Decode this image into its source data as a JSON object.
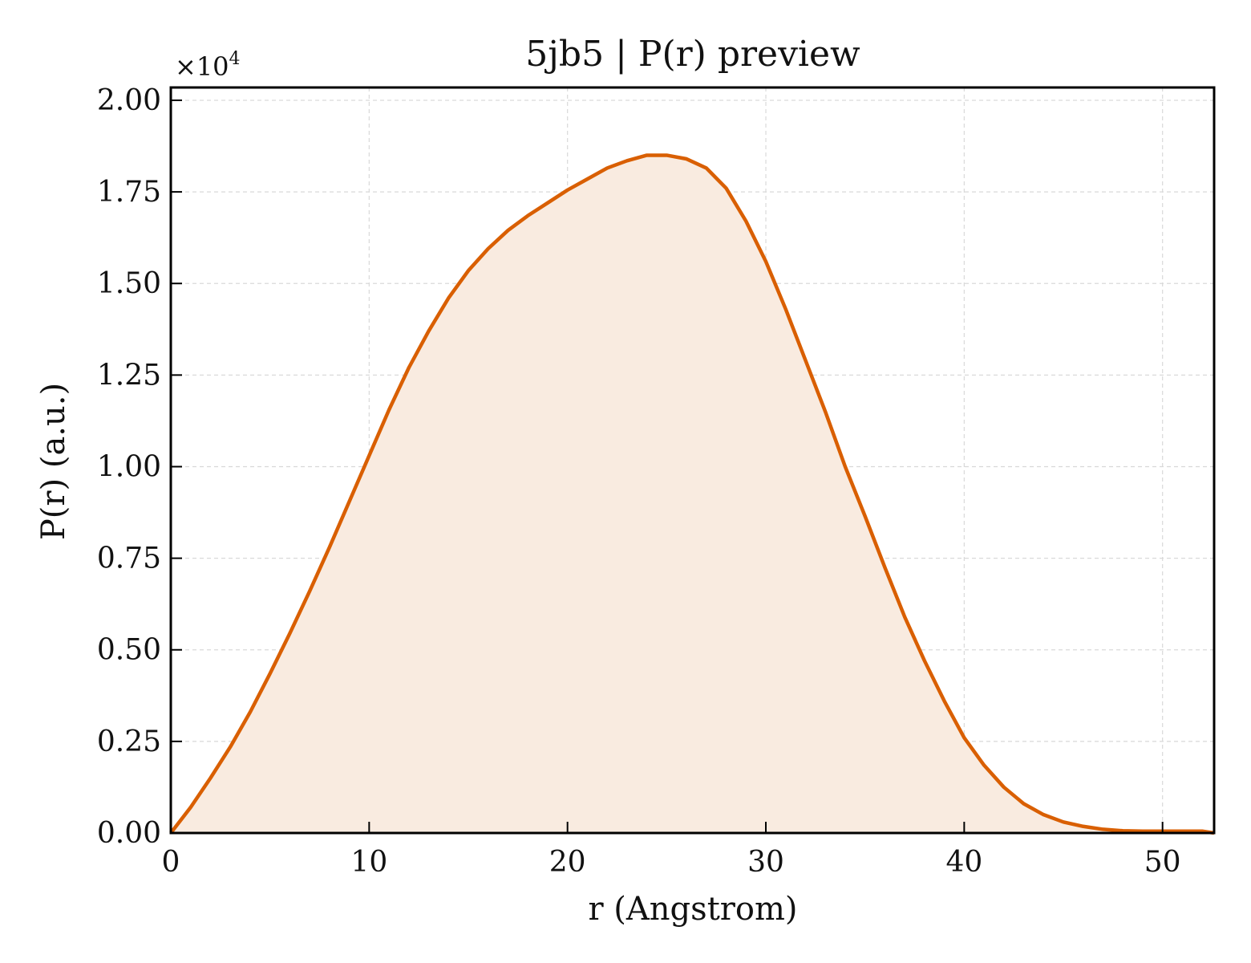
{
  "chart_data": {
    "type": "area",
    "title": "5jb5 | P(r) preview",
    "xlabel": "r (Angstrom)",
    "ylabel": "P(r) (a.u.)",
    "y_multiplier": {
      "base": "×10",
      "exponent": "4"
    },
    "xlim": [
      0,
      52.6
    ],
    "ylim": [
      0,
      20350
    ],
    "xticks": [
      0,
      10,
      20,
      30,
      40,
      50
    ],
    "xtick_labels": [
      "0",
      "10",
      "20",
      "30",
      "40",
      "50"
    ],
    "yticks": [
      0,
      2500,
      5000,
      7500,
      10000,
      12500,
      15000,
      17500,
      20000
    ],
    "ytick_labels": [
      "0.00",
      "0.25",
      "0.50",
      "0.75",
      "1.00",
      "1.25",
      "1.50",
      "1.75",
      "2.00"
    ],
    "grid": true,
    "line_color": "#d95f02",
    "fill_color": "#f9ebe0",
    "series": [
      {
        "x": [
          0,
          1,
          2,
          3,
          4,
          5,
          6,
          7,
          8,
          9,
          10,
          11,
          12,
          13,
          14,
          15,
          16,
          17,
          18,
          19,
          20,
          21,
          22,
          23,
          24,
          25,
          26,
          27,
          28,
          29,
          30,
          31,
          32,
          33,
          34,
          35,
          36,
          37,
          38,
          39,
          40,
          41,
          42,
          43,
          44,
          45,
          46,
          47,
          48,
          49,
          50,
          51,
          52,
          52.6
        ],
        "y": [
          0,
          700,
          1500,
          2350,
          3300,
          4350,
          5450,
          6600,
          7800,
          9050,
          10300,
          11550,
          12700,
          13700,
          14600,
          15350,
          15950,
          16450,
          16850,
          17200,
          17550,
          17850,
          18150,
          18350,
          18500,
          18500,
          18400,
          18150,
          17600,
          16700,
          15600,
          14300,
          12900,
          11500,
          10000,
          8650,
          7250,
          5900,
          4700,
          3600,
          2600,
          1850,
          1250,
          800,
          500,
          300,
          180,
          100,
          60,
          50,
          50,
          50,
          50,
          0
        ]
      }
    ]
  }
}
